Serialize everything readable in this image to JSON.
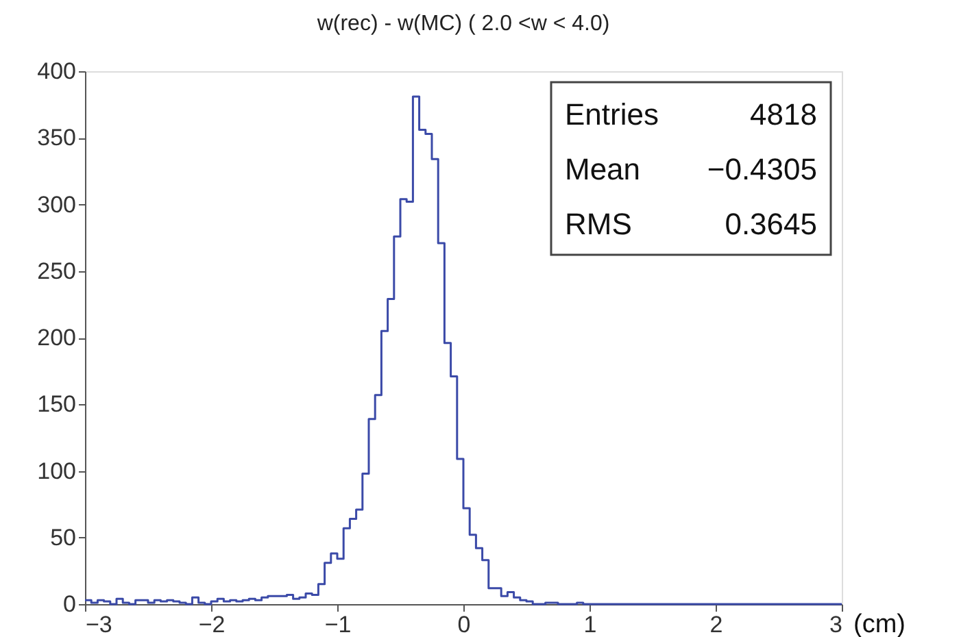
{
  "chart_data": {
    "type": "histogram",
    "title": "w(rec) - w(MC) ( 2.0 <w < 4.0)",
    "xlabel": "(cm)",
    "bins": [
      -3.0,
      -2.95,
      -2.9,
      -2.85,
      -2.8,
      -2.75,
      -2.7,
      -2.65,
      -2.6,
      -2.55,
      -2.5,
      -2.45,
      -2.4,
      -2.35,
      -2.3,
      -2.25,
      -2.2,
      -2.15,
      -2.1,
      -2.05,
      -2.0,
      -1.95,
      -1.9,
      -1.85,
      -1.8,
      -1.75,
      -1.7,
      -1.65,
      -1.6,
      -1.55,
      -1.5,
      -1.45,
      -1.4,
      -1.35,
      -1.3,
      -1.25,
      -1.2,
      -1.15,
      -1.1,
      -1.05,
      -1.0,
      -0.95,
      -0.9,
      -0.85,
      -0.8,
      -0.75,
      -0.7,
      -0.65,
      -0.6,
      -0.55,
      -0.5,
      -0.45,
      -0.4,
      -0.35,
      -0.3,
      -0.25,
      -0.2,
      -0.15,
      -0.1,
      -0.05,
      0.0,
      0.05,
      0.1,
      0.15,
      0.2,
      0.25,
      0.3,
      0.35,
      0.4,
      0.45,
      0.5,
      0.55,
      0.6,
      0.65,
      0.7,
      0.75,
      0.8,
      0.85,
      0.9,
      0.95,
      1.0,
      1.05,
      1.1,
      1.15,
      1.2,
      1.25,
      1.3,
      1.35,
      1.4,
      1.45,
      1.5,
      1.55,
      1.6,
      1.65,
      1.7,
      1.75,
      1.8,
      1.85,
      1.9,
      1.95,
      2.0,
      2.05,
      2.1,
      2.15,
      2.2,
      2.25,
      2.3,
      2.35,
      2.4,
      2.45,
      2.5,
      2.55,
      2.6,
      2.65,
      2.7,
      2.75,
      2.8,
      2.85,
      2.9,
      2.95,
      3.0
    ],
    "values": [
      3,
      1,
      3,
      2,
      0,
      4,
      1,
      0,
      3,
      3,
      1,
      3,
      2,
      3,
      2,
      1,
      0,
      5,
      1,
      0,
      2,
      4,
      2,
      3,
      2,
      3,
      4,
      3,
      5,
      6,
      6,
      6,
      7,
      4,
      5,
      8,
      7,
      15,
      31,
      38,
      34,
      57,
      64,
      71,
      98,
      139,
      157,
      205,
      229,
      276,
      304,
      302,
      381,
      356,
      353,
      334,
      271,
      196,
      171,
      109,
      72,
      52,
      42,
      33,
      12,
      12,
      6,
      9,
      5,
      3,
      2,
      0,
      0,
      1,
      1,
      0,
      0,
      0,
      1,
      0,
      0,
      0,
      0,
      0,
      0,
      0,
      0,
      0,
      0,
      0,
      0,
      0,
      0,
      0,
      0,
      0,
      0,
      0,
      0,
      0,
      0,
      0,
      0,
      0,
      0,
      0,
      0,
      0,
      0,
      0,
      0,
      0,
      0,
      0,
      0,
      0,
      0,
      0,
      0,
      0
    ],
    "color": "#3b4aa8",
    "xlim": [
      -3,
      3
    ],
    "xticks": [
      -3,
      -2,
      -1,
      0,
      1,
      2,
      3
    ],
    "ylim": [
      0,
      400
    ],
    "yticks": [
      0,
      50,
      100,
      150,
      200,
      250,
      300,
      350,
      400
    ],
    "grid": false,
    "annotations": [
      "Entries 4818",
      "Mean −0.4305",
      "RMS 0.3645"
    ]
  }
}
